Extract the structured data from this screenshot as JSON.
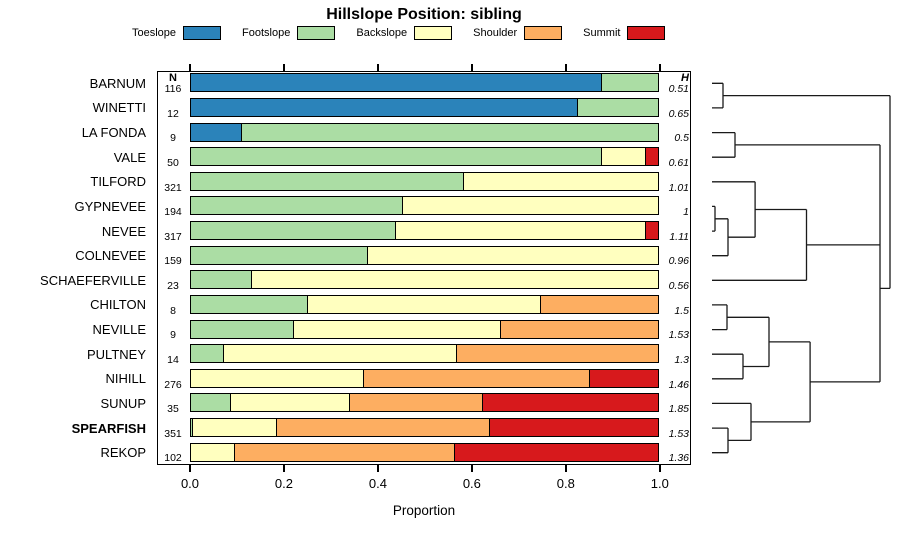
{
  "title": "Hillslope Position: sibling",
  "xlabel": "Proportion",
  "n_header": "N",
  "h_header": "H",
  "x_ticks": [
    "0.0",
    "0.2",
    "0.4",
    "0.6",
    "0.8",
    "1.0"
  ],
  "palette": {
    "Toeslope": "#2B83BA",
    "Footslope": "#ABDDA4",
    "Backslope": "#FFFFBF",
    "Shoulder": "#FDAE61",
    "Summit": "#D7191C"
  },
  "chart_data": {
    "type": "bar",
    "stacked": true,
    "orientation": "horizontal",
    "title": "Hillslope Position: sibling",
    "xlabel": "Proportion",
    "xlim": [
      0,
      1
    ],
    "legend_position": "top",
    "categories": [
      "Toeslope",
      "Footslope",
      "Backslope",
      "Shoulder",
      "Summit"
    ],
    "rows": [
      {
        "name": "BARNUM",
        "n": "116",
        "h": "0.51",
        "bold": false,
        "values": [
          0.88,
          0.12,
          0,
          0,
          0
        ]
      },
      {
        "name": "WINETTI",
        "n": "12",
        "h": "0.65",
        "bold": false,
        "values": [
          0.83,
          0.17,
          0,
          0,
          0
        ]
      },
      {
        "name": "LA FONDA",
        "n": "9",
        "h": "0.5",
        "bold": false,
        "values": [
          0.11,
          0.89,
          0,
          0,
          0
        ]
      },
      {
        "name": "VALE",
        "n": "50",
        "h": "0.61",
        "bold": false,
        "values": [
          0,
          0.88,
          0.095,
          0,
          0.025
        ]
      },
      {
        "name": "TILFORD",
        "n": "321",
        "h": "1.01",
        "bold": false,
        "values": [
          0,
          0.585,
          0.415,
          0,
          0
        ]
      },
      {
        "name": "GYPNEVEE",
        "n": "194",
        "h": "1",
        "bold": false,
        "values": [
          0,
          0.455,
          0.545,
          0,
          0
        ]
      },
      {
        "name": "NEVEE",
        "n": "317",
        "h": "1.11",
        "bold": false,
        "values": [
          0,
          0.44,
          0.535,
          0,
          0.025
        ]
      },
      {
        "name": "COLNEVEE",
        "n": "159",
        "h": "0.96",
        "bold": false,
        "values": [
          0,
          0.38,
          0.62,
          0,
          0
        ]
      },
      {
        "name": "SCHAEFERVILLE",
        "n": "23",
        "h": "0.56",
        "bold": false,
        "values": [
          0,
          0.13,
          0.87,
          0,
          0
        ]
      },
      {
        "name": "CHILTON",
        "n": "8",
        "h": "1.5",
        "bold": false,
        "values": [
          0,
          0.25,
          0.5,
          0.25,
          0
        ]
      },
      {
        "name": "NEVILLE",
        "n": "9",
        "h": "1.53",
        "bold": false,
        "values": [
          0,
          0.22,
          0.445,
          0.335,
          0
        ]
      },
      {
        "name": "PULTNEY",
        "n": "14",
        "h": "1.3",
        "bold": false,
        "values": [
          0,
          0.07,
          0.5,
          0.43,
          0
        ]
      },
      {
        "name": "NIHILL",
        "n": "276",
        "h": "1.46",
        "bold": false,
        "values": [
          0,
          0,
          0.37,
          0.485,
          0.145
        ]
      },
      {
        "name": "SUNUP",
        "n": "35",
        "h": "1.85",
        "bold": false,
        "values": [
          0,
          0.085,
          0.255,
          0.285,
          0.375
        ]
      },
      {
        "name": "SPEARFISH",
        "n": "351",
        "h": "1.53",
        "bold": true,
        "values": [
          0,
          0.005,
          0.18,
          0.455,
          0.36
        ]
      },
      {
        "name": "REKOP",
        "n": "102",
        "h": "1.36",
        "bold": false,
        "values": [
          0,
          0,
          0.095,
          0.47,
          0.435
        ]
      }
    ],
    "dendrogram": {
      "orientation": "right",
      "merges": [
        [
          "L5",
          "L6",
          0.017
        ],
        [
          "M0",
          "L7",
          0.09
        ],
        [
          "L4",
          "M1",
          0.242
        ],
        [
          "M2",
          "L8",
          0.531
        ],
        [
          "L0",
          "L1",
          0.062
        ],
        [
          "L2",
          "L3",
          0.129
        ],
        [
          "L9",
          "L10",
          0.084
        ],
        [
          "L11",
          "L12",
          0.174
        ],
        [
          "M6",
          "M7",
          0.32
        ],
        [
          "L14",
          "L15",
          0.09
        ],
        [
          "L13",
          "M9",
          0.219
        ],
        [
          "M8",
          "M10",
          0.551
        ],
        [
          "M5",
          "M3",
          0.944
        ],
        [
          "M12",
          "M11",
          0.944
        ],
        [
          "M4",
          "M13",
          1.0
        ]
      ]
    }
  }
}
